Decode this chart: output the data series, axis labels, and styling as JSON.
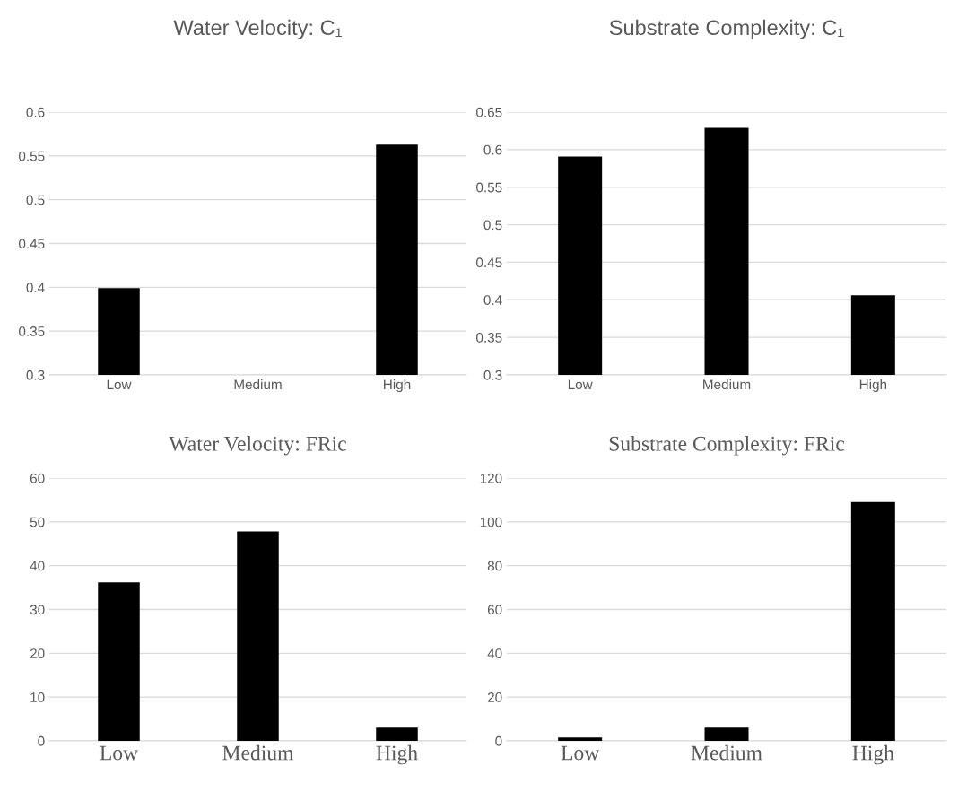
{
  "chart_data": [
    {
      "type": "bar",
      "title": "Water Velocity: C₁",
      "categories": [
        "Low",
        "Medium",
        "High"
      ],
      "values": [
        0.399,
        null,
        0.563
      ],
      "color": "#000000",
      "ylim": [
        0.3,
        0.6
      ],
      "yticks": [
        0.3,
        0.35,
        0.4,
        0.45,
        0.5,
        0.55,
        0.6
      ],
      "grid": "y"
    },
    {
      "type": "bar",
      "title": "Substrate Complexity: C₁",
      "categories": [
        "Low",
        "Medium",
        "High"
      ],
      "values": [
        0.591,
        0.629,
        0.406
      ],
      "color": "#000000",
      "ylim": [
        0.3,
        0.65
      ],
      "yticks": [
        0.3,
        0.35,
        0.4,
        0.45,
        0.5,
        0.55,
        0.6,
        0.65
      ],
      "grid": "y"
    },
    {
      "type": "bar",
      "title": "Water Velocity: FRic",
      "categories": [
        "Low",
        "Medium",
        "High"
      ],
      "values": [
        36.2,
        47.8,
        3.0
      ],
      "color": "#000000",
      "ylim": [
        0,
        60
      ],
      "yticks": [
        0,
        10,
        20,
        30,
        40,
        50,
        60
      ],
      "grid": "y"
    },
    {
      "type": "bar",
      "title": "Substrate Complexity: FRic",
      "categories": [
        "Low",
        "Medium",
        "High"
      ],
      "values": [
        1.5,
        6,
        109
      ],
      "color": "#000000",
      "ylim": [
        0,
        120
      ],
      "yticks": [
        0,
        20,
        40,
        60,
        80,
        100,
        120
      ],
      "grid": "y"
    }
  ]
}
